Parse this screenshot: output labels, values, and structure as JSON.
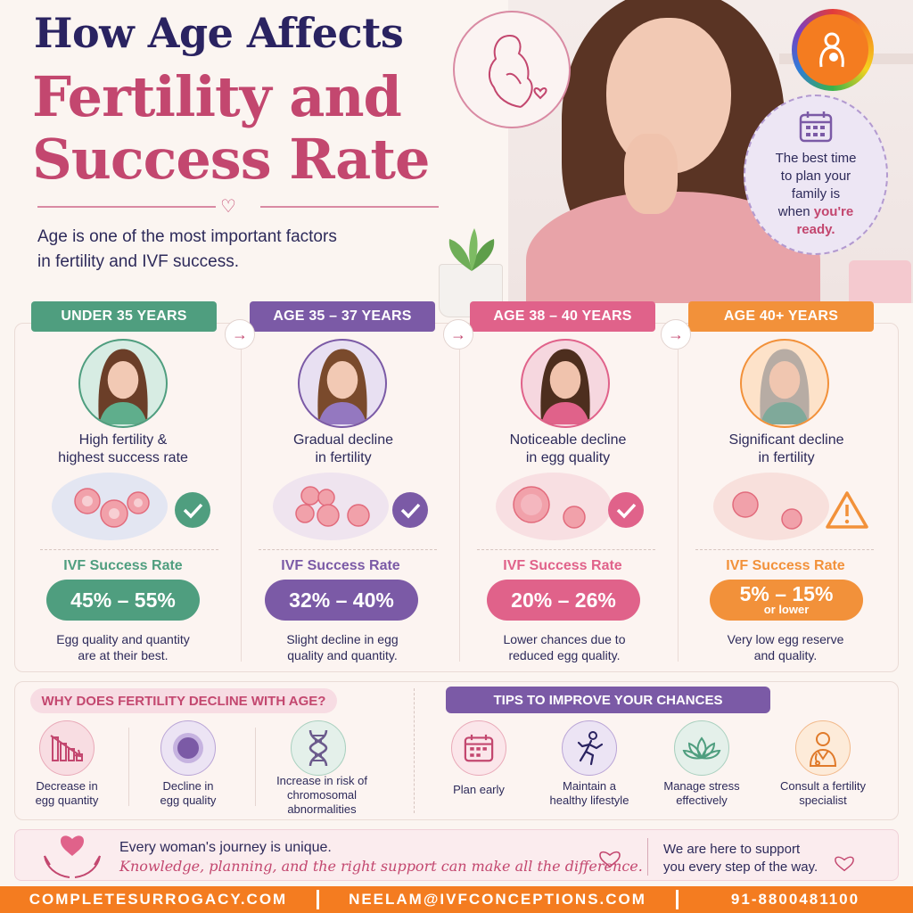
{
  "header": {
    "title_line1": "How Age Affects",
    "title_line2": "Fertility and",
    "title_line3": "Success Rate",
    "intro_line1": "Age is one of the most important factors",
    "intro_line2": "in fertility and IVF success."
  },
  "bubble": {
    "text_line1": "The best time",
    "text_line2": "to plan your",
    "text_line3": "family is",
    "text_line4_plain": "when ",
    "text_line4_hl": "you're",
    "text_line5_hl": "ready."
  },
  "colors": {
    "navy": "#2a2361",
    "rose": "#c3476f",
    "green": "#4f9e7f",
    "purple": "#7b5aa6",
    "pink": "#e0628a",
    "orange": "#f2913a",
    "contact_orange": "#f47c20"
  },
  "age_groups": [
    {
      "tab": "UNDER 35 YEARS",
      "desc_line1": "High fertility &",
      "desc_line2": "highest success rate",
      "ivf_label": "IVF Success Rate",
      "rate": "45% – 55%",
      "rate_sub": "",
      "note_line1": "Egg quality and quantity",
      "note_line2": "are at their best.",
      "status_icon": "check-icon"
    },
    {
      "tab": "AGE 35 – 37 YEARS",
      "desc_line1": "Gradual decline",
      "desc_line2": "in fertility",
      "ivf_label": "IVF Success Rate",
      "rate": "32% – 40%",
      "rate_sub": "",
      "note_line1": "Slight decline in egg",
      "note_line2": "quality and quantity.",
      "status_icon": "check-icon"
    },
    {
      "tab": "AGE 38 – 40 YEARS",
      "desc_line1": "Noticeable decline",
      "desc_line2": "in egg quality",
      "ivf_label": "IVF Success Rate",
      "rate": "20% – 26%",
      "rate_sub": "",
      "note_line1": "Lower chances due to",
      "note_line2": "reduced egg quality.",
      "status_icon": "check-icon"
    },
    {
      "tab": "AGE 40+ YEARS",
      "desc_line1": "Significant decline",
      "desc_line2": "in fertility",
      "ivf_label": "IVF Success Rate",
      "rate": "5% – 15%",
      "rate_sub": "or lower",
      "note_line1": "Very low egg reserve",
      "note_line2": "and quality.",
      "status_icon": "warning-icon"
    }
  ],
  "why": {
    "title": "WHY DOES FERTILITY DECLINE WITH AGE?",
    "items": [
      {
        "line1": "Decrease in",
        "line2": "egg quantity",
        "line3": "",
        "icon": "declining-chart-icon"
      },
      {
        "line1": "Decline in",
        "line2": "egg quality",
        "line3": "",
        "icon": "egg-cell-icon"
      },
      {
        "line1": "Increase in risk of",
        "line2": "chromosomal",
        "line3": "abnormalities",
        "icon": "dna-icon"
      }
    ]
  },
  "tips": {
    "title": "TIPS TO IMPROVE YOUR CHANCES",
    "items": [
      {
        "line1": "Plan early",
        "line2": "",
        "icon": "calendar-icon"
      },
      {
        "line1": "Maintain a",
        "line2": "healthy lifestyle",
        "icon": "running-person-icon"
      },
      {
        "line1": "Manage stress",
        "line2": "effectively",
        "icon": "lotus-icon"
      },
      {
        "line1": "Consult a fertility",
        "line2": "specialist",
        "icon": "doctor-icon"
      }
    ]
  },
  "quote": {
    "line1": "Every woman's journey is unique.",
    "line2": "Knowledge, planning, and the right support can make all the difference.",
    "right_line1": "We are here to support",
    "right_line2": "you every step of the way."
  },
  "contact": {
    "website": "COMPLETESURROGACY.COM",
    "email": "NEELAM@IVFCONCEPTIONS.COM",
    "phone": "91-8800481100"
  }
}
